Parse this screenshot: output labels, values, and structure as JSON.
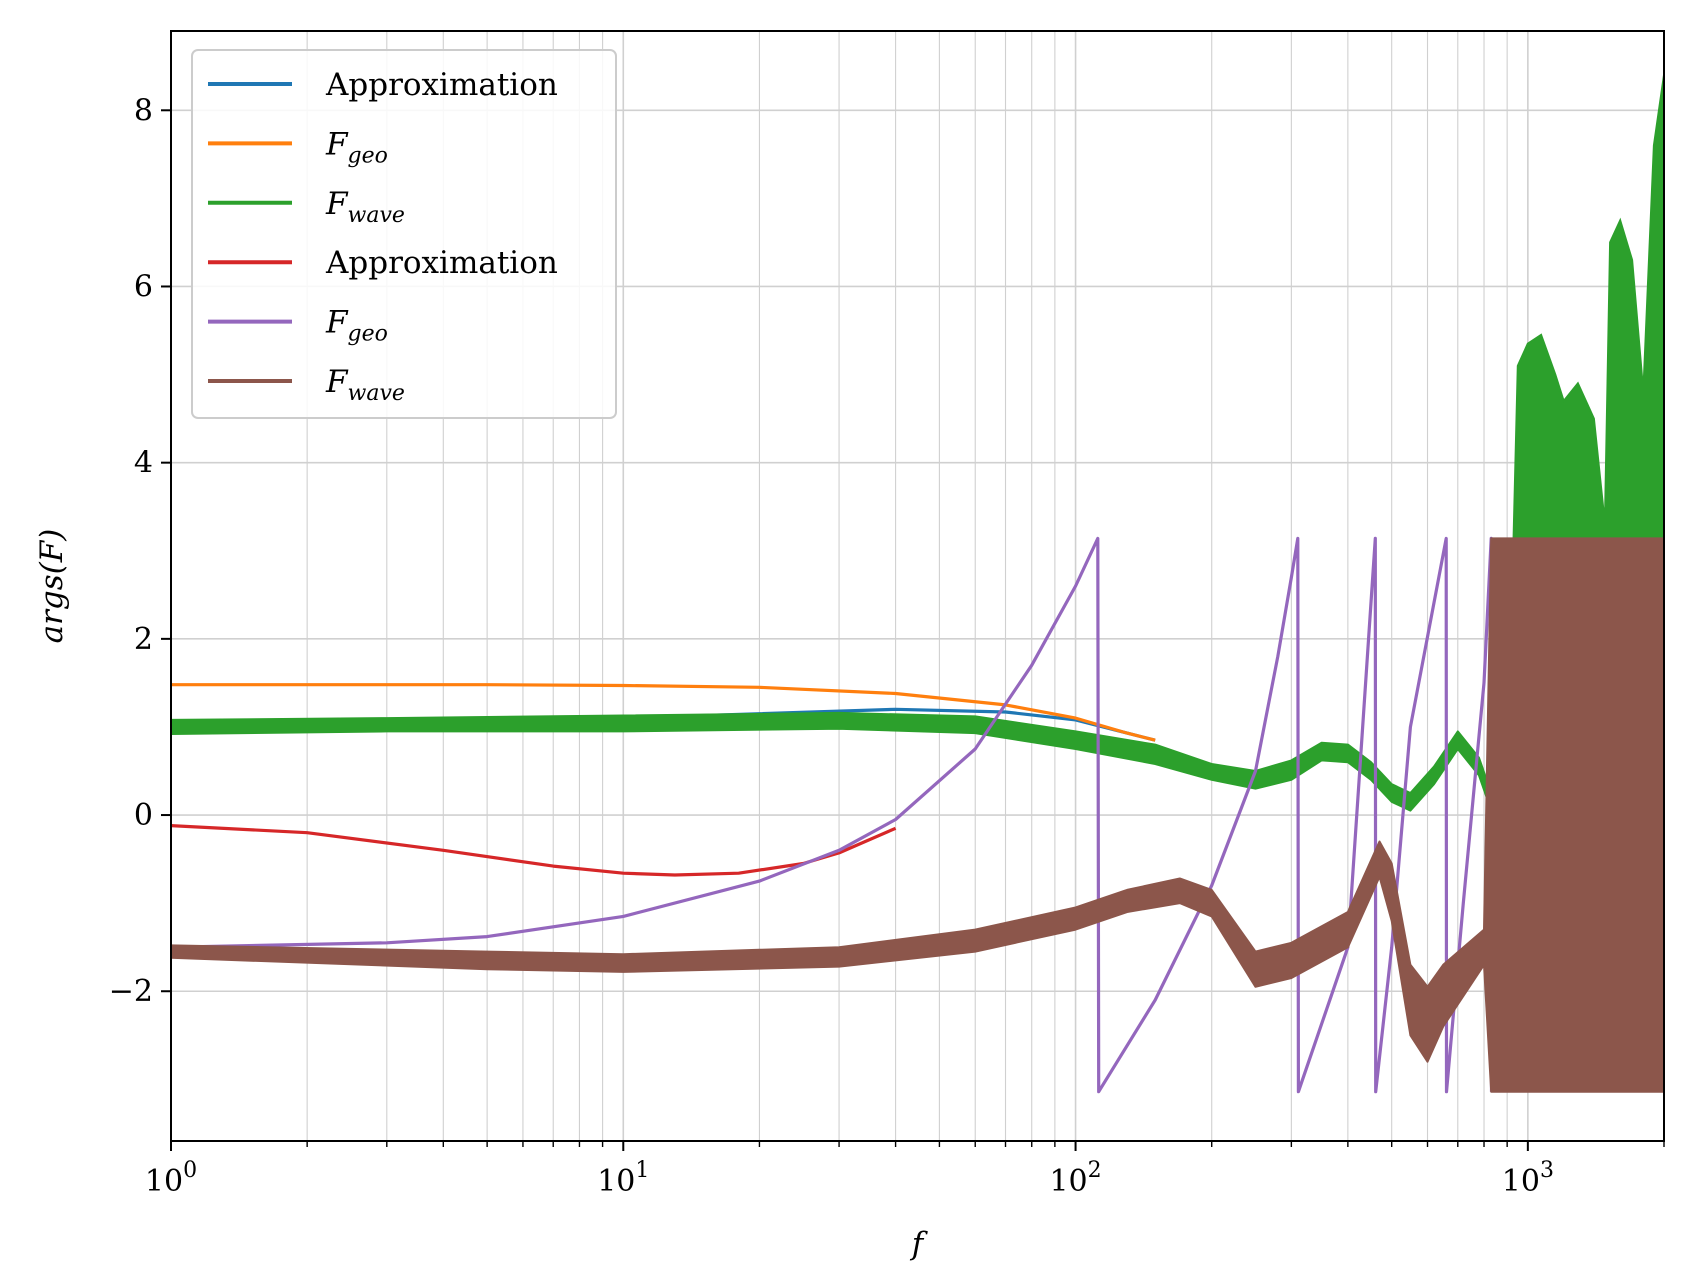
{
  "chart_data": {
    "type": "line",
    "title": "",
    "xlabel": "f",
    "ylabel": "args(F)",
    "xscale": "log",
    "xlim": [
      1,
      2000
    ],
    "ylim": [
      -3.7,
      8.9
    ],
    "grid": true,
    "legend_position": "upper-left",
    "x_ticks": [
      {
        "base": "10",
        "exp": "0"
      },
      {
        "base": "10",
        "exp": "1"
      },
      {
        "base": "10",
        "exp": "2"
      },
      {
        "base": "10",
        "exp": "3"
      }
    ],
    "y_ticks": [
      {
        "value": -2,
        "label": "−2"
      },
      {
        "value": 0,
        "label": "0"
      },
      {
        "value": 2,
        "label": "2"
      },
      {
        "value": 4,
        "label": "4"
      },
      {
        "value": 6,
        "label": "6"
      },
      {
        "value": 8,
        "label": "8"
      }
    ],
    "legend": [
      {
        "base": "Approximation",
        "sub": "",
        "color": "#1f77b4",
        "math": false
      },
      {
        "base": "F",
        "sub": "geo",
        "color": "#ff7f0e",
        "math": true
      },
      {
        "base": "F",
        "sub": "wave",
        "color": "#2ca02c",
        "math": true
      },
      {
        "base": "Approximation",
        "sub": "",
        "color": "#d62728",
        "math": false
      },
      {
        "base": "F",
        "sub": "geo",
        "color": "#9467bd",
        "math": true
      },
      {
        "base": "F",
        "sub": "wave",
        "color": "#8c564b",
        "math": true
      }
    ],
    "series": [
      {
        "color": "#1f77b4",
        "style": "line",
        "points": [
          [
            1,
            1.0
          ],
          [
            3,
            1.05
          ],
          [
            10,
            1.1
          ],
          [
            20,
            1.15
          ],
          [
            40,
            1.2
          ],
          [
            70,
            1.17
          ],
          [
            100,
            1.08
          ],
          [
            130,
            0.93
          ],
          [
            150,
            0.85
          ]
        ]
      },
      {
        "color": "#ff7f0e",
        "style": "line",
        "points": [
          [
            1,
            1.48
          ],
          [
            5,
            1.48
          ],
          [
            10,
            1.47
          ],
          [
            20,
            1.45
          ],
          [
            40,
            1.38
          ],
          [
            70,
            1.25
          ],
          [
            100,
            1.1
          ],
          [
            130,
            0.93
          ],
          [
            150,
            0.85
          ]
        ]
      },
      {
        "color": "#2ca02c",
        "style": "band",
        "upper": [
          [
            1,
            1.08
          ],
          [
            3,
            1.1
          ],
          [
            10,
            1.13
          ],
          [
            30,
            1.16
          ],
          [
            60,
            1.12
          ],
          [
            100,
            0.95
          ],
          [
            150,
            0.8
          ],
          [
            200,
            0.58
          ],
          [
            250,
            0.5
          ],
          [
            300,
            0.62
          ],
          [
            350,
            0.82
          ],
          [
            400,
            0.8
          ],
          [
            450,
            0.6
          ],
          [
            500,
            0.35
          ],
          [
            550,
            0.25
          ],
          [
            620,
            0.55
          ],
          [
            700,
            0.95
          ],
          [
            780,
            0.65
          ],
          [
            830,
            0.25
          ],
          [
            900,
            0.2
          ]
        ],
        "lower": [
          [
            1,
            0.92
          ],
          [
            3,
            0.95
          ],
          [
            10,
            0.95
          ],
          [
            30,
            0.98
          ],
          [
            60,
            0.93
          ],
          [
            100,
            0.75
          ],
          [
            150,
            0.58
          ],
          [
            200,
            0.4
          ],
          [
            250,
            0.3
          ],
          [
            300,
            0.4
          ],
          [
            350,
            0.62
          ],
          [
            400,
            0.6
          ],
          [
            450,
            0.4
          ],
          [
            500,
            0.15
          ],
          [
            550,
            0.05
          ],
          [
            620,
            0.35
          ],
          [
            700,
            0.75
          ],
          [
            780,
            0.45
          ],
          [
            830,
            0.05
          ],
          [
            900,
            0.0
          ]
        ],
        "spikes": [
          [
            900,
            0.2
          ],
          [
            950,
            5.1
          ],
          [
            1000,
            5.35
          ],
          [
            1070,
            5.45
          ],
          [
            1150,
            5.0
          ],
          [
            1200,
            4.7
          ],
          [
            1290,
            4.9
          ],
          [
            1400,
            4.5
          ],
          [
            1480,
            3.3
          ],
          [
            1520,
            6.5
          ],
          [
            1600,
            6.75
          ],
          [
            1700,
            6.3
          ],
          [
            1800,
            4.8
          ],
          [
            1900,
            7.6
          ],
          [
            2000,
            8.4
          ]
        ]
      },
      {
        "color": "#d62728",
        "style": "line",
        "points": [
          [
            1,
            -0.12
          ],
          [
            2,
            -0.2
          ],
          [
            4,
            -0.4
          ],
          [
            7,
            -0.58
          ],
          [
            10,
            -0.66
          ],
          [
            13,
            -0.68
          ],
          [
            18,
            -0.66
          ],
          [
            25,
            -0.55
          ],
          [
            30,
            -0.43
          ],
          [
            40,
            -0.15
          ]
        ]
      },
      {
        "color": "#9467bd",
        "style": "line",
        "points": [
          [
            1,
            -1.5
          ],
          [
            3,
            -1.45
          ],
          [
            5,
            -1.38
          ],
          [
            10,
            -1.15
          ],
          [
            20,
            -0.75
          ],
          [
            30,
            -0.4
          ],
          [
            40,
            -0.05
          ],
          [
            60,
            0.75
          ],
          [
            80,
            1.7
          ],
          [
            100,
            2.6
          ],
          [
            112,
            3.14
          ],
          [
            112.5,
            -3.14
          ],
          [
            150,
            -2.1
          ],
          [
            200,
            -0.8
          ],
          [
            250,
            0.5
          ],
          [
            280,
            1.8
          ],
          [
            300,
            2.7
          ],
          [
            310,
            3.14
          ],
          [
            311,
            -3.14
          ],
          [
            400,
            -1.5
          ],
          [
            460,
            3.14
          ],
          [
            461,
            -3.14
          ],
          [
            500,
            -1.5
          ],
          [
            550,
            1.0
          ],
          [
            660,
            3.14
          ],
          [
            661,
            -3.14
          ],
          [
            720,
            -1.0
          ],
          [
            800,
            1.5
          ],
          [
            830,
            3.14
          ],
          [
            831,
            -3.14
          ]
        ]
      },
      {
        "color": "#8c564b",
        "style": "band",
        "upper": [
          [
            1,
            -1.48
          ],
          [
            5,
            -1.55
          ],
          [
            10,
            -1.58
          ],
          [
            30,
            -1.5
          ],
          [
            60,
            -1.3
          ],
          [
            100,
            -1.05
          ],
          [
            130,
            -0.85
          ],
          [
            170,
            -0.72
          ],
          [
            200,
            -0.85
          ],
          [
            250,
            -1.55
          ],
          [
            300,
            -1.45
          ],
          [
            400,
            -1.1
          ],
          [
            470,
            -0.3
          ],
          [
            500,
            -0.55
          ],
          [
            550,
            -1.7
          ],
          [
            600,
            -1.95
          ],
          [
            650,
            -1.7
          ],
          [
            800,
            -1.3
          ],
          [
            830,
            3.14
          ],
          [
            2000,
            3.14
          ]
        ],
        "lower": [
          [
            1,
            -1.62
          ],
          [
            5,
            -1.75
          ],
          [
            10,
            -1.78
          ],
          [
            30,
            -1.72
          ],
          [
            60,
            -1.55
          ],
          [
            100,
            -1.3
          ],
          [
            130,
            -1.1
          ],
          [
            170,
            -1.0
          ],
          [
            200,
            -1.15
          ],
          [
            250,
            -1.95
          ],
          [
            300,
            -1.85
          ],
          [
            400,
            -1.5
          ],
          [
            470,
            -0.7
          ],
          [
            500,
            -1.2
          ],
          [
            550,
            -2.5
          ],
          [
            600,
            -2.8
          ],
          [
            650,
            -2.4
          ],
          [
            800,
            -1.7
          ],
          [
            830,
            -3.14
          ],
          [
            2000,
            -3.14
          ]
        ]
      }
    ]
  }
}
